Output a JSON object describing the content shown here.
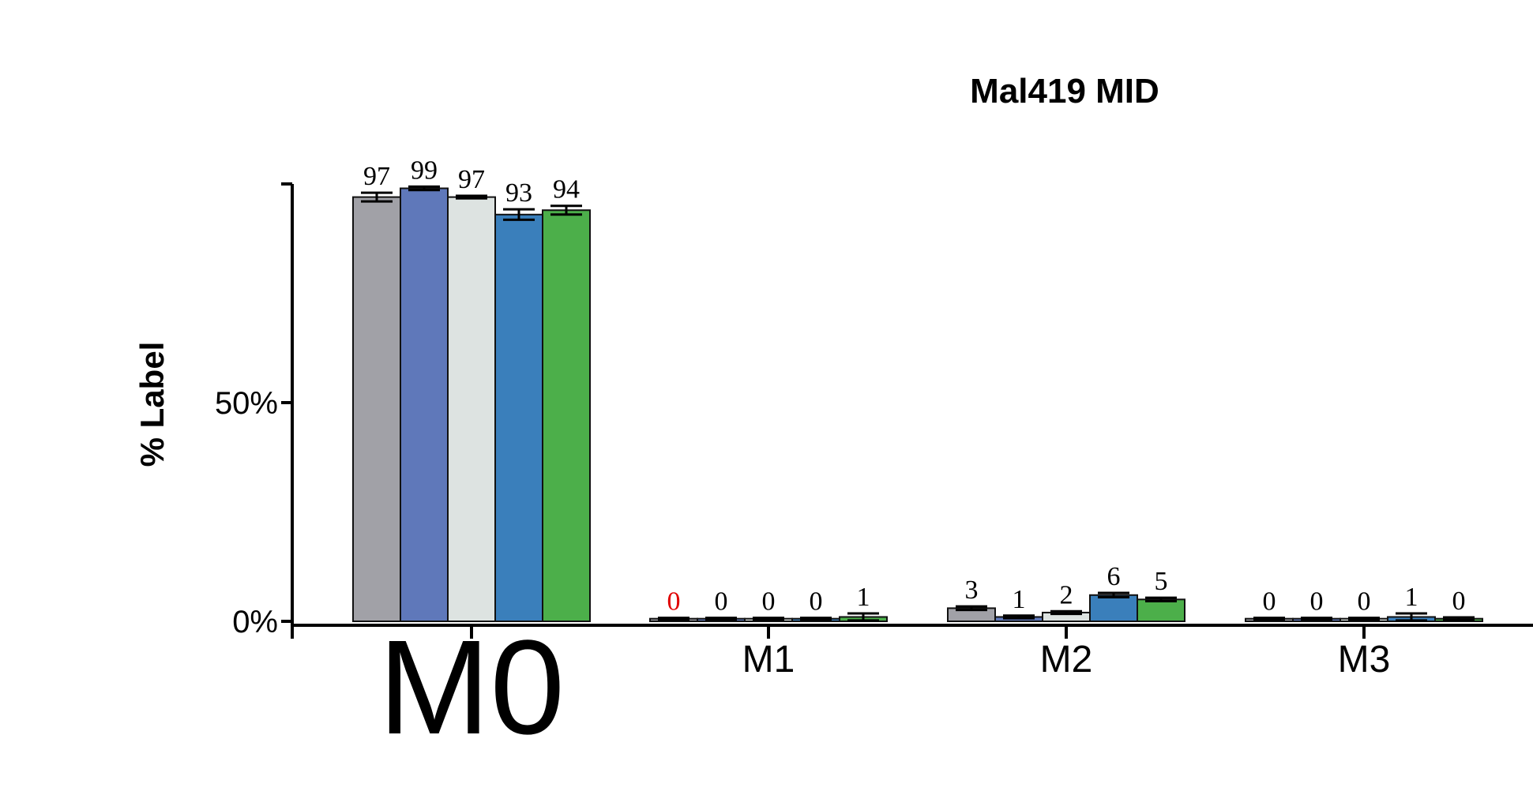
{
  "chart_data": {
    "type": "bar",
    "title": "Mal419 MID",
    "ylabel": "% Label",
    "xlabel": "",
    "ylim": [
      0,
      100
    ],
    "yticks": [
      0,
      50
    ],
    "ytick_labels": [
      "0%",
      "50%"
    ],
    "categories": [
      "M0",
      "M1",
      "M2",
      "M3"
    ],
    "series_colors": [
      "#a1a1a7",
      "#5f78ba",
      "#dde3e1",
      "#3a7fbb",
      "#4caf4a"
    ],
    "series": [
      {
        "values": [
          97,
          0,
          3,
          0
        ],
        "errors": [
          1.0,
          0.2,
          0.4,
          0.2
        ]
      },
      {
        "values": [
          99,
          0,
          1,
          0
        ],
        "errors": [
          0.4,
          0.2,
          0.3,
          0.2
        ]
      },
      {
        "values": [
          97,
          0,
          2,
          0
        ],
        "errors": [
          0.3,
          0.2,
          0.3,
          0.2
        ]
      },
      {
        "values": [
          93,
          0,
          6,
          1
        ],
        "errors": [
          1.2,
          0.2,
          0.5,
          0.8
        ]
      },
      {
        "values": [
          94,
          1,
          5,
          0
        ],
        "errors": [
          1.0,
          0.8,
          0.4,
          0.3
        ]
      }
    ],
    "data_labels": [
      [
        "97",
        "99",
        "97",
        "93",
        "94"
      ],
      [
        "0",
        "0",
        "0",
        "0",
        "1"
      ],
      [
        "3",
        "1",
        "2",
        "6",
        "5"
      ],
      [
        "0",
        "0",
        "0",
        "1",
        "0"
      ]
    ],
    "highlighted_label_color": "#e00000",
    "highlighted_label": {
      "category": 1,
      "series": 0
    },
    "grid": false,
    "legend": "none"
  }
}
